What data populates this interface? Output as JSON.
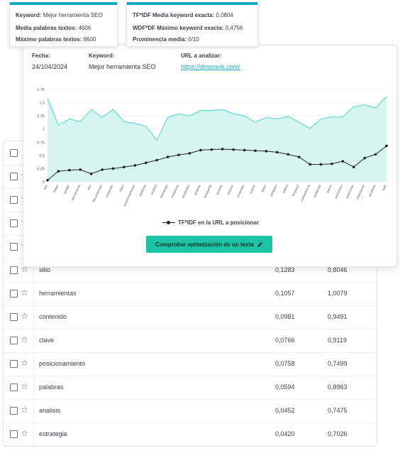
{
  "tooltip_left": {
    "items": [
      {
        "label": "Keyword:",
        "value": "Mejor herramienta SEO"
      },
      {
        "label": "Media palabras textos:",
        "value": "4606"
      },
      {
        "label": "Máximo palabras textos:",
        "value": "8600"
      }
    ]
  },
  "tooltip_right": {
    "items": [
      {
        "label": "TF*IDF Media keyword exacta:",
        "value": "0,0804"
      },
      {
        "label": "WDF*DF Máximo keyword exacta:",
        "value": "0,4756"
      },
      {
        "label": "Prominencia media:",
        "value": "0/10"
      }
    ]
  },
  "panel": {
    "fecha_label": "Fecha:",
    "fecha_value": "24/104/2024",
    "keyword_label": "Keyword:",
    "keyword_value": "Mejor herramienta SEO",
    "url_label": "URL a analizar:",
    "url_value": "https://dinorank.com/",
    "legend": "TF*IDF en la URL a posicionar",
    "button_label": "Comprobar optimización de un texto"
  },
  "chart_data": {
    "type": "area",
    "ylim": [
      0,
      1.75
    ],
    "yticks": [
      "1.75",
      "1.5",
      "1.25",
      "1",
      "0.75",
      "0.5",
      "0.25",
      "0"
    ],
    "categories": [
      "seo",
      "mejor",
      "google",
      "herramienta",
      "sitio",
      "herramientas",
      "contenido",
      "clave",
      "posicionamiento",
      "palabras",
      "analisis",
      "estrategia",
      "marketing",
      "resultados",
      "analizar",
      "busqueda",
      "permite",
      "mejorar",
      "contenido",
      "search",
      "datos",
      "similares",
      "trafico",
      "keyword",
      "competencia",
      "audiencia",
      "precio",
      "posiciones",
      "posicionar",
      "interesante",
      "producto",
      "web"
    ],
    "series": [
      {
        "name": "",
        "color": "#55d6cc",
        "values": [
          1.58,
          1.07,
          1.19,
          1.14,
          1.37,
          1.22,
          1.37,
          1.14,
          1.11,
          1.05,
          0.79,
          1.22,
          1.29,
          1.25,
          1.35,
          1.35,
          1.37,
          1.29,
          1.25,
          1.13,
          1.22,
          1.19,
          1.24,
          1.13,
          1.01,
          1.19,
          1.23,
          1.23,
          1.42,
          1.46,
          1.4,
          1.62
        ]
      },
      {
        "name": "TF*IDF en la URL a posicionar",
        "color": "#222222",
        "values": [
          0.03,
          0.2,
          0.22,
          0.23,
          0.15,
          0.23,
          0.25,
          0.28,
          0.31,
          0.36,
          0.41,
          0.47,
          0.51,
          0.54,
          0.6,
          0.61,
          0.62,
          0.61,
          0.6,
          0.59,
          0.58,
          0.56,
          0.52,
          0.47,
          0.33,
          0.33,
          0.34,
          0.39,
          0.28,
          0.45,
          0.52,
          0.68
        ]
      }
    ]
  },
  "table": {
    "rows": [
      {
        "word": "",
        "v1": "",
        "v2": ""
      },
      {
        "word": "",
        "v1": "",
        "v2": ""
      },
      {
        "word": "",
        "v1": "",
        "v2": ""
      },
      {
        "word": "",
        "v1": "",
        "v2": ""
      },
      {
        "word": "",
        "v1": "",
        "v2": ""
      },
      {
        "word": "sitio",
        "v1": "0,1283",
        "v2": "0,8046"
      },
      {
        "word": "herramientas",
        "v1": "0,1057",
        "v2": "1,0079"
      },
      {
        "word": "contenido",
        "v1": "0,0981",
        "v2": "0,9491"
      },
      {
        "word": "clave",
        "v1": "0,0766",
        "v2": "0,9119"
      },
      {
        "word": "posicionamiento",
        "v1": "0,0758",
        "v2": "0,7499"
      },
      {
        "word": "palabras",
        "v1": "0,0594",
        "v2": "0,8963"
      },
      {
        "word": "analisis",
        "v1": "0,0452",
        "v2": "0,7475"
      },
      {
        "word": "estrategia",
        "v1": "0,0420",
        "v2": "0,7026"
      }
    ]
  }
}
